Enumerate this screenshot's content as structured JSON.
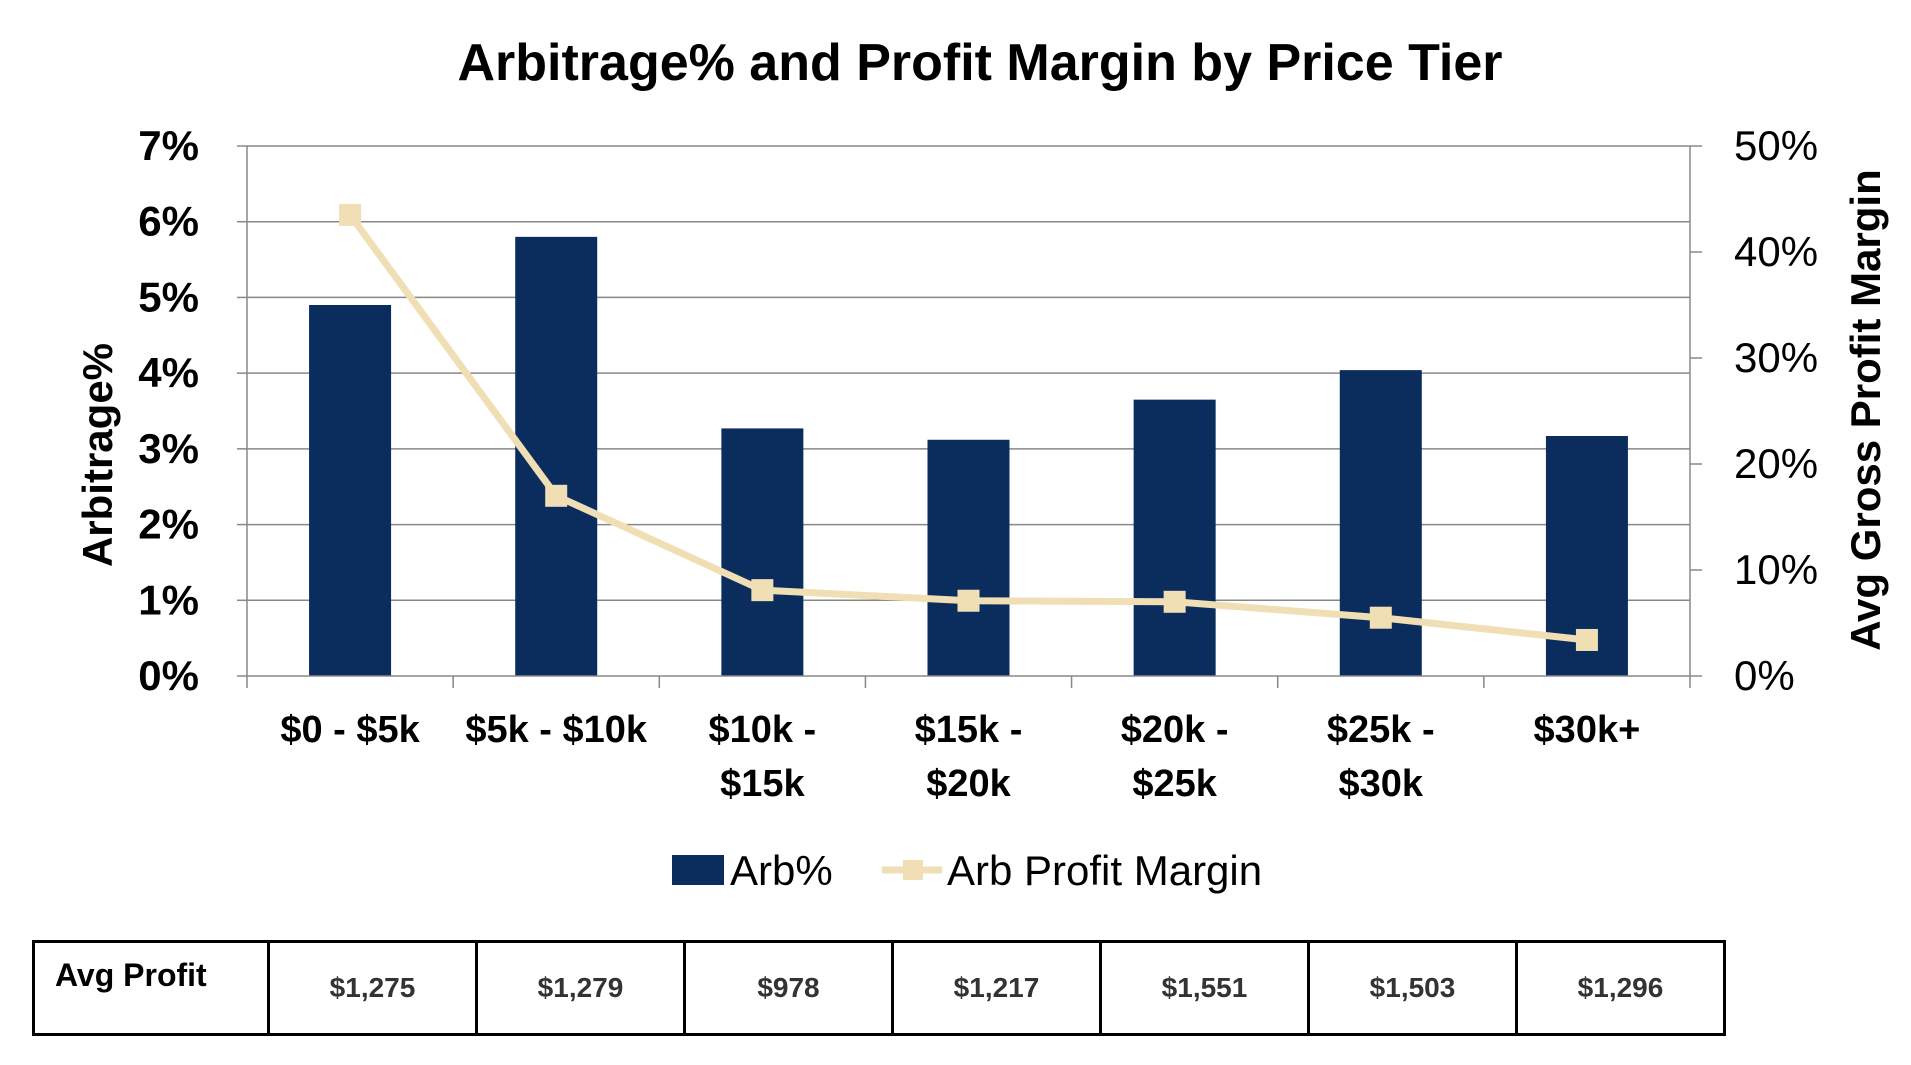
{
  "chart_data": {
    "type": "bar",
    "title": "Arbitrage% and Profit Margin by Price Tier",
    "categories": [
      "$0 - $5k",
      "$5k - $10k",
      "$10k - $15k",
      "$15k - $20k",
      "$20k - $25k",
      "$25k - $30k",
      "$30k+"
    ],
    "category_lines": [
      [
        "$0 - $5k"
      ],
      [
        "$5k - $10k"
      ],
      [
        "$10k -",
        "$15k"
      ],
      [
        "$15k -",
        "$20k"
      ],
      [
        "$20k -",
        "$25k"
      ],
      [
        "$25k -",
        "$30k"
      ],
      [
        "$30k+"
      ]
    ],
    "ylabel": "Arbitrage%",
    "y2label": "Avg Gross Profit Margin",
    "ylim": [
      0,
      7
    ],
    "y2lim": [
      0,
      50
    ],
    "yticks": [
      "0%",
      "1%",
      "2%",
      "3%",
      "4%",
      "5%",
      "6%",
      "7%"
    ],
    "y2ticks": [
      "0%",
      "10%",
      "20%",
      "30%",
      "40%",
      "50%"
    ],
    "grid": true,
    "legend_position": "bottom",
    "series": [
      {
        "name": "Arb%",
        "type": "bar",
        "axis": "left",
        "color": "#0a2d5e",
        "values": [
          4.9,
          5.8,
          3.27,
          3.12,
          3.65,
          4.04,
          3.17
        ]
      },
      {
        "name": "Arb Profit Margin",
        "type": "line",
        "axis": "right",
        "color": "#f0dfb4",
        "values": [
          43.5,
          17.0,
          8.1,
          7.1,
          7.0,
          5.5,
          3.4
        ]
      }
    ]
  },
  "table": {
    "row_label": "Avg Profit",
    "values": [
      "$1,275",
      "$1,279",
      "$978",
      "$1,217",
      "$1,551",
      "$1,503",
      "$1,296"
    ]
  }
}
